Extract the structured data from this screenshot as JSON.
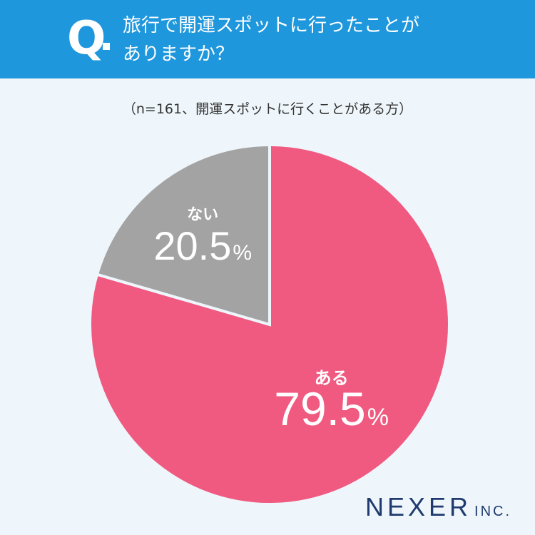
{
  "header": {
    "q_mark": "Q",
    "question_line1": "旅行で開運スポットに行ったことが",
    "question_line2": "ありますか？"
  },
  "sample_note": "（n=161、開運スポットに行くことがある方）",
  "chart_data": {
    "type": "pie",
    "title": "旅行で開運スポットに行ったことがありますか？",
    "subtitle": "（n=161、開運スポットに行くことがある方）",
    "categories": [
      "ある",
      "ない"
    ],
    "values": [
      79.5,
      20.5
    ],
    "value_labels": [
      "79.5",
      "20.5"
    ],
    "unit": "%",
    "start": "12 o'clock",
    "direction": "clockwise",
    "colors": [
      "#f05a80",
      "#a3a3a3"
    ],
    "separator_color": "#eef6fb"
  },
  "brand": {
    "name": "NEXER",
    "suffix": "INC."
  },
  "colors": {
    "header": "#1f97dc",
    "background": "#eef6fb",
    "brand": "#1f3a6e"
  }
}
